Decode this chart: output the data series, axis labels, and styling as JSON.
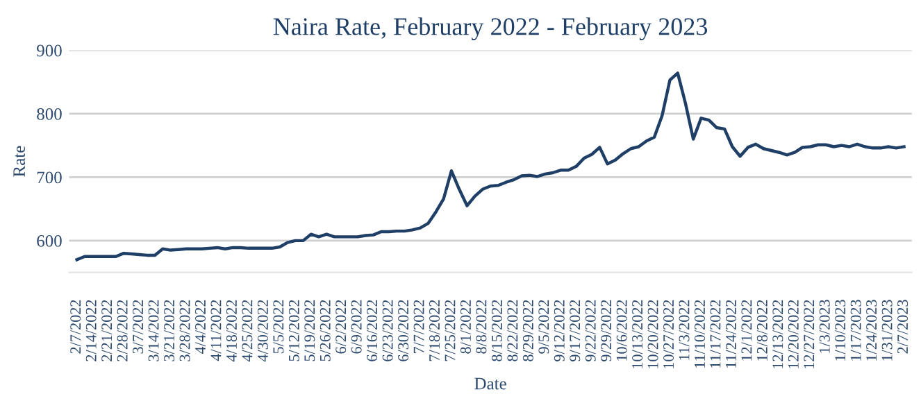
{
  "chart_data": {
    "type": "line",
    "title": "Naira Rate, February 2022 - February 2023",
    "xlabel": "Date",
    "ylabel": "Rate",
    "categories": [
      "2/7/2022",
      null,
      "2/14/2022",
      null,
      "2/21/2022",
      null,
      "2/28/2022",
      null,
      "3/7/2022",
      null,
      "3/14/2022",
      null,
      "3/21/2022",
      null,
      "3/28/2022",
      null,
      "4/4/2022",
      null,
      "4/11/2022",
      null,
      "4/18/2022",
      null,
      "4/25/2022",
      null,
      "4/30/2022",
      null,
      "5/5/2022",
      null,
      "5/12/2022",
      null,
      "5/19/2022",
      null,
      "5/26/2022",
      null,
      "6/2/2022",
      null,
      "6/9/2022",
      null,
      "6/16/2022",
      null,
      "6/23/2022",
      null,
      "6/30/2022",
      null,
      "7/7/2022",
      null,
      "7/18/2022",
      null,
      "7/25/2022",
      null,
      "8/1/2022",
      null,
      "8/8/2022",
      null,
      "8/15/2022",
      null,
      "8/22/2022",
      null,
      "8/29/2022",
      null,
      "9/5/2022",
      null,
      "9/12/2022",
      null,
      "9/17/2022",
      null,
      "9/22/2022",
      null,
      "9/29/2022",
      null,
      "10/6/2022",
      null,
      "10/13/2022",
      null,
      "10/20/2022",
      null,
      "10/27/2022",
      null,
      "11/3/2022",
      null,
      "11/10/2022",
      null,
      "11/17/2022",
      null,
      "11/24/2022",
      null,
      "12/1/2022",
      null,
      "12/8/2022",
      null,
      "12/13/2022",
      null,
      "12/20/2022",
      null,
      "12/27/2022",
      null,
      "1/3/2023",
      null,
      "1/10/2023",
      null,
      "1/17/2023",
      null,
      "1/24/2023",
      null,
      "1/31/2023",
      null,
      "2/7/2023"
    ],
    "series": [
      {
        "color": "#1f3f66",
        "values": [
          570,
          575,
          575,
          575,
          575,
          575,
          580,
          579,
          578,
          577,
          577,
          587,
          585,
          586,
          587,
          587,
          587,
          588,
          589,
          587,
          589,
          589,
          588,
          588,
          588,
          588,
          590,
          597,
          600,
          600,
          610,
          606,
          610,
          606,
          606,
          606,
          606,
          608,
          609,
          614,
          614,
          615,
          615,
          617,
          620,
          627,
          645,
          666,
          710,
          681,
          655,
          670,
          681,
          686,
          687,
          692,
          696,
          702,
          703,
          701,
          705,
          707,
          711,
          711,
          717,
          730,
          736,
          747,
          721,
          727,
          737,
          745,
          748,
          757,
          763,
          797,
          853,
          864,
          816,
          760,
          793,
          790,
          778,
          776,
          748,
          733,
          747,
          752,
          745,
          742,
          739,
          735,
          739,
          747,
          748,
          751,
          751,
          748,
          750,
          748,
          752,
          748,
          746,
          746,
          748,
          746,
          748
        ]
      }
    ],
    "ylim": [
      550,
      900
    ],
    "yticks": [
      600,
      700,
      800,
      900
    ],
    "grid": "y",
    "line_style": "solid",
    "marker": "none"
  }
}
